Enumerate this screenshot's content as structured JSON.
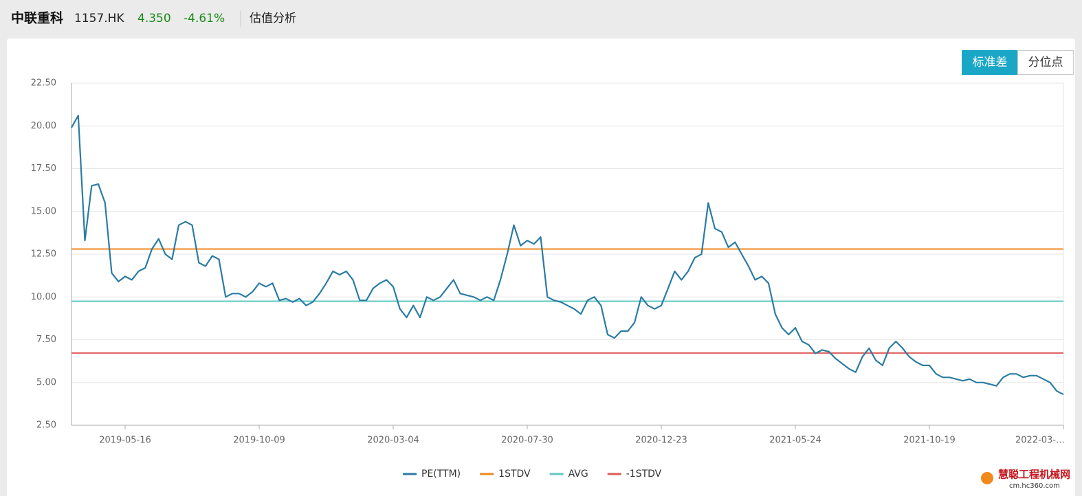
{
  "header": {
    "name": "中联重科",
    "code": "1157.HK",
    "price": "4.350",
    "change": "-4.61%",
    "section": "估值分析"
  },
  "buttons": [
    "标准差",
    "分位点"
  ],
  "watermark": {
    "name": "慧聪工程机械网",
    "url": "cm.hc360.com"
  },
  "chart_data": {
    "type": "line",
    "categories": [
      null,
      null,
      null,
      null,
      null,
      null,
      null,
      null,
      "2019-05-16",
      null,
      null,
      null,
      null,
      null,
      null,
      null,
      null,
      null,
      null,
      null,
      null,
      null,
      null,
      null,
      null,
      null,
      null,
      null,
      "2019-10-09",
      null,
      null,
      null,
      null,
      null,
      null,
      null,
      null,
      null,
      null,
      null,
      null,
      null,
      null,
      null,
      null,
      null,
      null,
      null,
      "2020-03-04",
      null,
      null,
      null,
      null,
      null,
      null,
      null,
      null,
      null,
      null,
      null,
      null,
      null,
      null,
      null,
      null,
      null,
      null,
      null,
      "2020-07-30",
      null,
      null,
      null,
      null,
      null,
      null,
      null,
      null,
      null,
      null,
      null,
      null,
      null,
      null,
      null,
      null,
      null,
      null,
      null,
      "2020-12-23",
      null,
      null,
      null,
      null,
      null,
      null,
      null,
      null,
      null,
      null,
      null,
      null,
      null,
      null,
      null,
      null,
      null,
      null,
      null,
      "2021-05-24",
      null,
      null,
      null,
      null,
      null,
      null,
      null,
      null,
      null,
      null,
      null,
      null,
      null,
      null,
      null,
      null,
      null,
      null,
      null,
      "2021-10-19",
      null,
      null,
      null,
      null,
      null,
      null,
      null,
      null,
      null,
      null,
      null,
      null,
      null,
      null,
      null,
      null,
      null,
      null,
      null,
      "2022-03-…"
    ],
    "series": [
      {
        "name": "PE(TTM)",
        "color": "#2b7ba3",
        "values": [
          19.9,
          20.6,
          13.3,
          16.5,
          16.6,
          15.5,
          11.4,
          10.9,
          11.2,
          11.0,
          11.5,
          11.7,
          12.8,
          13.4,
          12.5,
          12.2,
          14.2,
          14.4,
          14.2,
          12.0,
          11.8,
          12.4,
          12.2,
          10.0,
          10.2,
          10.2,
          10.0,
          10.3,
          10.8,
          10.6,
          10.8,
          9.8,
          9.9,
          9.7,
          9.9,
          9.5,
          9.7,
          10.2,
          10.8,
          11.5,
          11.3,
          11.5,
          11.0,
          9.8,
          9.8,
          10.5,
          10.8,
          11.0,
          10.6,
          9.3,
          8.8,
          9.5,
          8.8,
          10.0,
          9.8,
          10.0,
          10.5,
          11.0,
          10.2,
          10.1,
          10.0,
          9.8,
          10.0,
          9.8,
          11.0,
          12.5,
          14.2,
          13.0,
          13.3,
          13.1,
          13.5,
          10.0,
          9.8,
          9.7,
          9.5,
          9.3,
          9.0,
          9.8,
          10.0,
          9.5,
          7.8,
          7.6,
          8.0,
          8.0,
          8.5,
          10.0,
          9.5,
          9.3,
          9.5,
          10.5,
          11.5,
          11.0,
          11.5,
          12.3,
          12.5,
          15.5,
          14.0,
          13.8,
          12.9,
          13.2,
          12.5,
          11.8,
          11.0,
          11.2,
          10.8,
          9.0,
          8.2,
          7.8,
          8.2,
          7.4,
          7.2,
          6.7,
          6.9,
          6.8,
          6.4,
          6.1,
          5.8,
          5.6,
          6.5,
          7.0,
          6.3,
          6.0,
          7.0,
          7.4,
          7.0,
          6.5,
          6.2,
          6.0,
          6.0,
          5.5,
          5.3,
          5.3,
          5.2,
          5.1,
          5.2,
          5.0,
          5.0,
          4.9,
          4.8,
          5.3,
          5.5,
          5.5,
          5.3,
          5.4,
          5.4,
          5.2,
          5.0,
          4.5,
          4.3
        ]
      }
    ],
    "reference_lines": [
      {
        "name": "1STDV",
        "color": "#f0861f",
        "value": 12.8
      },
      {
        "name": "AVG",
        "color": "#5ec8c2",
        "value": 9.75
      },
      {
        "name": "-1STDV",
        "color": "#e05a5a",
        "value": 6.72
      }
    ],
    "ylim": [
      2.5,
      22.5
    ],
    "yticks": [
      {
        "value": 2.5,
        "label": "2.50"
      },
      {
        "value": 5,
        "label": "5.00"
      },
      {
        "value": 7.5,
        "label": "7.50"
      },
      {
        "value": 10,
        "label": "10.00"
      },
      {
        "value": 12.5,
        "label": "12.50"
      },
      {
        "value": 15,
        "label": "15.00"
      },
      {
        "value": 17.5,
        "label": "17.50"
      },
      {
        "value": 20,
        "label": "20.00"
      },
      {
        "value": 22.5,
        "label": "22.50"
      }
    ],
    "grid": true
  }
}
